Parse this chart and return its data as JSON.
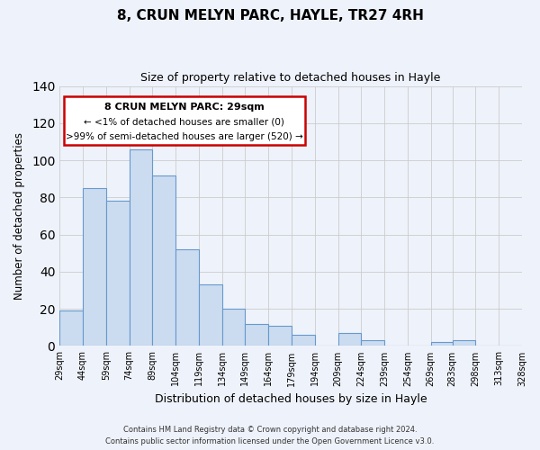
{
  "title": "8, CRUN MELYN PARC, HAYLE, TR27 4RH",
  "subtitle": "Size of property relative to detached houses in Hayle",
  "xlabel": "Distribution of detached houses by size in Hayle",
  "ylabel": "Number of detached properties",
  "bar_edges": [
    29,
    44,
    59,
    74,
    89,
    104,
    119,
    134,
    149,
    164,
    179,
    194,
    209,
    224,
    239,
    254,
    269,
    283,
    298,
    313,
    328
  ],
  "bar_heights": [
    19,
    85,
    78,
    106,
    92,
    52,
    33,
    20,
    12,
    11,
    6,
    0,
    7,
    3,
    0,
    0,
    2,
    3,
    0,
    0
  ],
  "bar_color": "#ccdcf0",
  "bar_edge_color": "#6699cc",
  "ylim": [
    0,
    140
  ],
  "yticks": [
    0,
    20,
    40,
    60,
    80,
    100,
    120,
    140
  ],
  "xtick_labels": [
    "29sqm",
    "44sqm",
    "59sqm",
    "74sqm",
    "89sqm",
    "104sqm",
    "119sqm",
    "134sqm",
    "149sqm",
    "164sqm",
    "179sqm",
    "194sqm",
    "209sqm",
    "224sqm",
    "239sqm",
    "254sqm",
    "269sqm",
    "283sqm",
    "298sqm",
    "313sqm",
    "328sqm"
  ],
  "ann_line1": "8 CRUN MELYN PARC: 29sqm",
  "ann_line2": "← <1% of detached houses are smaller (0)",
  "ann_line3": ">99% of semi-detached houses are larger (520) →",
  "box_edge_color": "#cc0000",
  "grid_color": "#cccccc",
  "background_color": "#eef2fa",
  "footer_line1": "Contains HM Land Registry data © Crown copyright and database right 2024.",
  "footer_line2": "Contains public sector information licensed under the Open Government Licence v3.0."
}
